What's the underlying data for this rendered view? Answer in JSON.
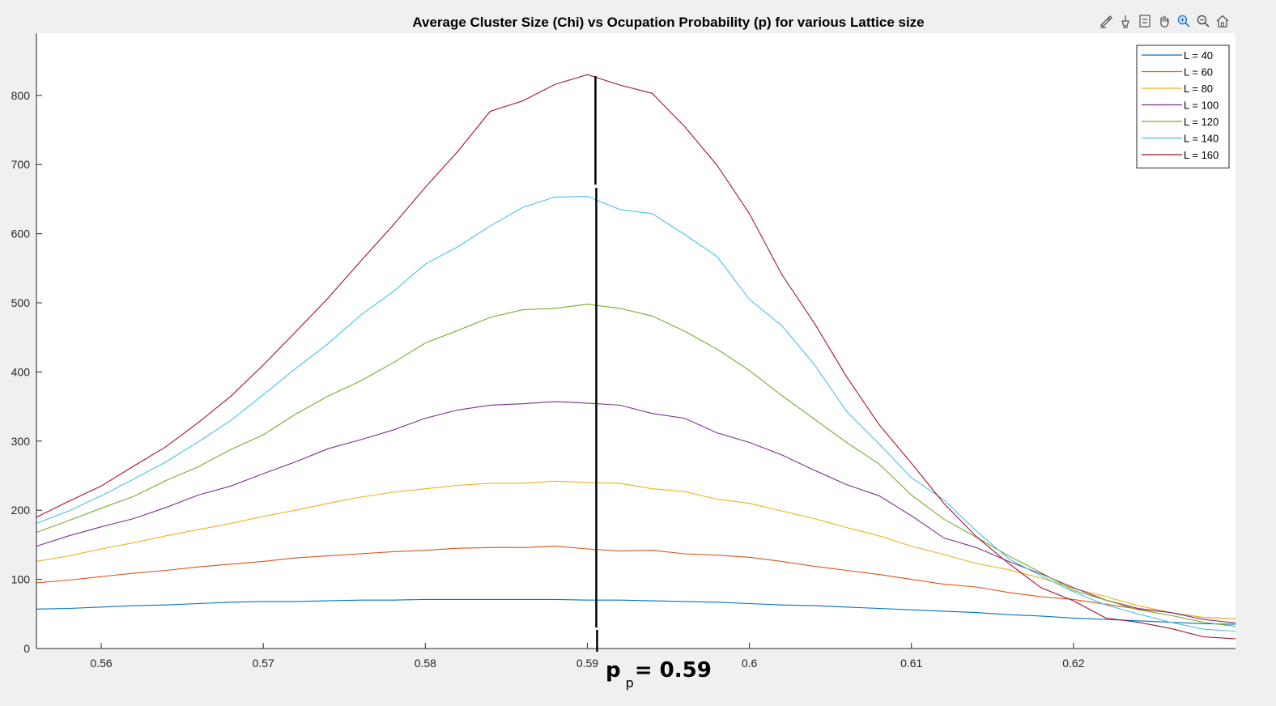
{
  "toolbar": {
    "icons": [
      "brush-icon",
      "data-tips-icon",
      "legend-toggle-icon",
      "pan-icon",
      "zoom-in-icon",
      "zoom-out-icon",
      "home-icon"
    ]
  },
  "chart_data": {
    "type": "line",
    "title": "Average Cluster Size (Chi) vs Ocupation Probability (p) for various Lattice size",
    "xlabel": "",
    "ylabel": "",
    "xlim": [
      0.556,
      0.63
    ],
    "ylim": [
      0,
      890
    ],
    "xticks": [
      0.56,
      0.57,
      0.58,
      0.59,
      0.6,
      0.61,
      0.62
    ],
    "xtick_labels": [
      "0.56",
      "0.57",
      "0.58",
      "0.59",
      "0.6",
      "0.61",
      "0.62"
    ],
    "yticks": [
      0,
      100,
      200,
      300,
      400,
      500,
      600,
      700,
      800
    ],
    "ytick_labels": [
      "0",
      "100",
      "200",
      "300",
      "400",
      "500",
      "600",
      "700",
      "800"
    ],
    "grid": false,
    "legend_position": "top-right",
    "x": [
      0.556,
      0.558,
      0.56,
      0.562,
      0.564,
      0.566,
      0.568,
      0.57,
      0.572,
      0.574,
      0.576,
      0.578,
      0.58,
      0.582,
      0.584,
      0.586,
      0.588,
      0.59,
      0.592,
      0.594,
      0.596,
      0.598,
      0.6,
      0.602,
      0.604,
      0.606,
      0.608,
      0.61,
      0.612,
      0.614,
      0.616,
      0.618,
      0.62,
      0.622,
      0.624,
      0.626,
      0.628,
      0.63
    ],
    "series": [
      {
        "name": "L = 40",
        "color": "#0072BD",
        "values": [
          57,
          58,
          60,
          62,
          63,
          65,
          67,
          68,
          68,
          69,
          70,
          70,
          71,
          71,
          71,
          71,
          71,
          70,
          70,
          69,
          68,
          67,
          65,
          63,
          62,
          60,
          58,
          56,
          54,
          52,
          49,
          47,
          44,
          42,
          40,
          38,
          36,
          35
        ]
      },
      {
        "name": "L = 60",
        "color": "#D95319",
        "values": [
          95,
          99,
          104,
          109,
          113,
          118,
          122,
          126,
          131,
          134,
          137,
          140,
          142,
          145,
          146,
          146,
          148,
          144,
          141,
          142,
          137,
          135,
          132,
          126,
          119,
          113,
          107,
          100,
          93,
          89,
          81,
          75,
          71,
          64,
          57,
          52,
          45,
          43
        ]
      },
      {
        "name": "L = 80",
        "color": "#EDB120",
        "values": [
          126,
          134,
          144,
          153,
          163,
          172,
          181,
          191,
          200,
          210,
          219,
          226,
          231,
          236,
          239,
          239,
          242,
          240,
          239,
          231,
          227,
          216,
          210,
          199,
          188,
          175,
          163,
          148,
          136,
          123,
          114,
          102,
          87,
          75,
          62,
          52,
          45,
          43
        ]
      },
      {
        "name": "L = 100",
        "color": "#7E2F8E",
        "values": [
          148,
          163,
          176,
          188,
          204,
          222,
          235,
          253,
          270,
          289,
          302,
          316,
          333,
          345,
          352,
          354,
          357,
          355,
          352,
          340,
          333,
          312,
          298,
          280,
          258,
          237,
          221,
          192,
          160,
          146,
          126,
          108,
          88,
          70,
          58,
          52,
          42,
          37
        ]
      },
      {
        "name": "L = 120",
        "color": "#77AC30",
        "values": [
          168,
          185,
          203,
          220,
          243,
          263,
          288,
          309,
          339,
          365,
          387,
          413,
          442,
          460,
          479,
          490,
          492,
          498,
          492,
          481,
          459,
          433,
          402,
          366,
          332,
          298,
          267,
          222,
          187,
          161,
          134,
          110,
          84,
          70,
          56,
          48,
          38,
          32
        ]
      },
      {
        "name": "L = 140",
        "color": "#4DBEEE",
        "values": [
          181,
          199,
          221,
          245,
          270,
          299,
          330,
          367,
          405,
          441,
          482,
          516,
          556,
          581,
          611,
          638,
          653,
          654,
          635,
          629,
          599,
          567,
          505,
          467,
          411,
          343,
          296,
          247,
          215,
          170,
          130,
          105,
          82,
          63,
          50,
          38,
          28,
          25
        ]
      },
      {
        "name": "L = 160",
        "color": "#A2142F",
        "values": [
          190,
          213,
          235,
          264,
          292,
          327,
          365,
          410,
          458,
          507,
          560,
          612,
          667,
          719,
          777,
          792,
          816,
          830,
          815,
          803,
          755,
          699,
          629,
          541,
          471,
          393,
          324,
          268,
          210,
          162,
          123,
          88,
          69,
          44,
          38,
          29,
          17,
          14
        ]
      }
    ],
    "annotation": {
      "line_x": 0.5905,
      "label_main": "p",
      "label_sub": "p",
      "label_value": " = 0.59"
    }
  }
}
